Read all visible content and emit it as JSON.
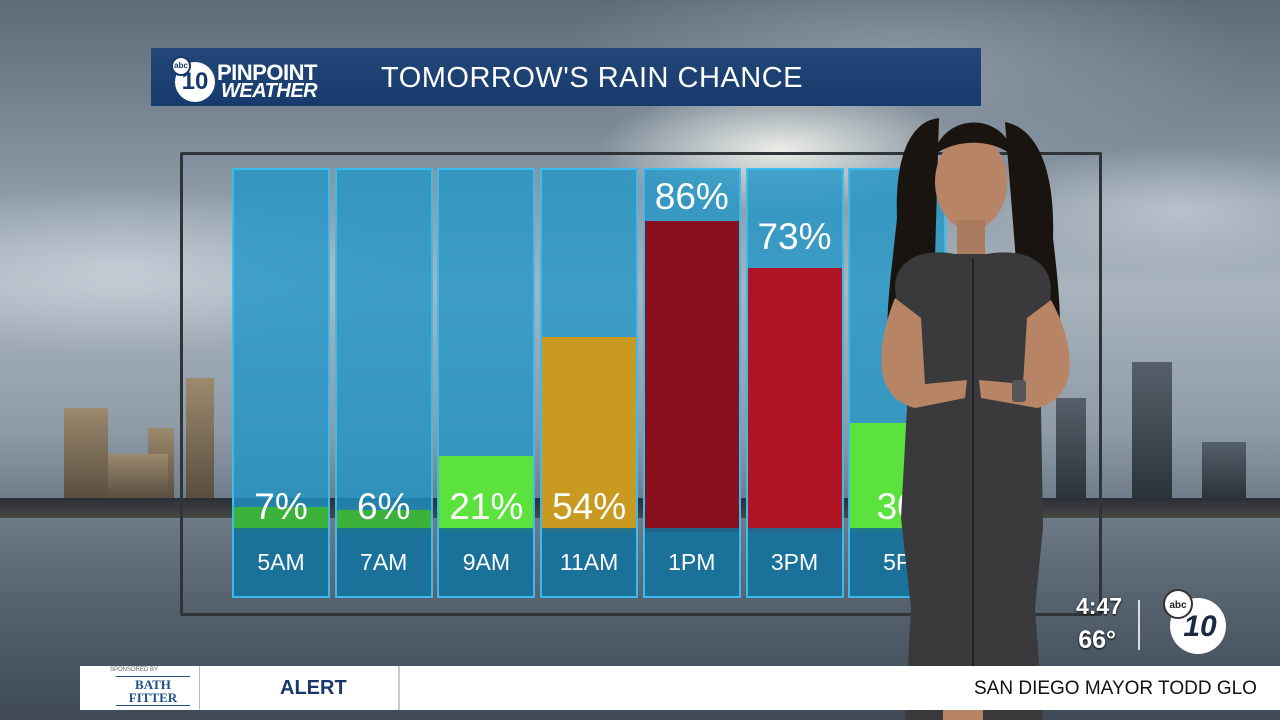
{
  "header": {
    "logo_top": "PINPOINT",
    "logo_bottom": "WEATHER",
    "logo_number": "10",
    "logo_network": "abc",
    "title": "TOMORROW'S RAIN CHANCE"
  },
  "chart_data": {
    "type": "bar",
    "title": "TOMORROW'S RAIN CHANCE",
    "categories": [
      "5AM",
      "7AM",
      "9AM",
      "11AM",
      "1PM",
      "3PM",
      "5P"
    ],
    "values": [
      7,
      6,
      21,
      54,
      86,
      73,
      30
    ],
    "value_labels": [
      "7%",
      "6%",
      "21%",
      "54%",
      "86%",
      "73%",
      "30"
    ],
    "ylim": [
      0,
      100
    ],
    "colors": [
      "#3cb13c",
      "#3cb13c",
      "#5ce23c",
      "#c89a20",
      "#8a1020",
      "#b01424",
      "#5ce23c"
    ]
  },
  "status": {
    "time": "4:47",
    "temp": "66°",
    "network": "abc",
    "channel": "10"
  },
  "ticker": {
    "sponsor_label": "SPONSORED BY",
    "sponsor_name_1": "BATH",
    "sponsor_name_2": "FITTER",
    "alert": "ALERT",
    "headline": "SAN DIEGO MAYOR TODD GLO"
  }
}
